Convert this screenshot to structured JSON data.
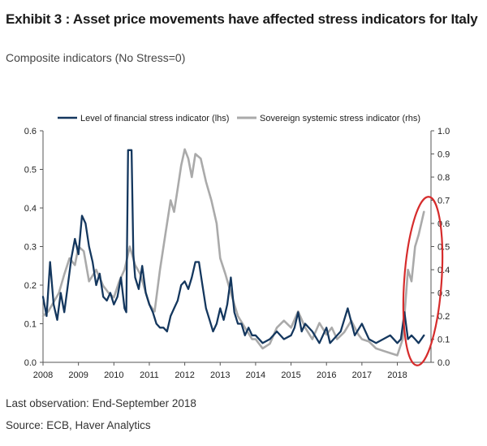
{
  "header": {
    "title": "Exhibit 3 : Asset price movements have affected stress indicators for Italy",
    "subtitle": "Composite indicators (No Stress=0)"
  },
  "footer": {
    "note": "Last observation: End-September 2018",
    "source": "Source: ECB, Haver Analytics"
  },
  "colors": {
    "financial": "#14375e",
    "sovereign": "#aaaaaa",
    "highlight": "#d62c2c",
    "axis": "#555555"
  },
  "chart_data": {
    "type": "line",
    "legend_position": "top",
    "grid": false,
    "x_ticks": [
      "2008",
      "2009",
      "2010",
      "2011",
      "2012",
      "2013",
      "2014",
      "2015",
      "2016",
      "2017",
      "2018"
    ],
    "y_left_ticks": [
      "0.0",
      "0.1",
      "0.2",
      "0.3",
      "0.4",
      "0.5",
      "0.6"
    ],
    "y_right_ticks": [
      "0.0",
      "0.1",
      "0.2",
      "0.3",
      "0.4",
      "0.5",
      "0.6",
      "0.7",
      "0.8",
      "0.9",
      "1.0"
    ],
    "ylim_left": [
      0,
      0.6
    ],
    "ylim_right": [
      0,
      1.0
    ],
    "xlim": [
      2008,
      2018.95
    ],
    "annotation": "red ellipse highlighting 2018 rise",
    "series": [
      {
        "name": "Level of financial stress indicator (lhs)",
        "axis": "left",
        "x": [
          2008.0,
          2008.1,
          2008.2,
          2008.3,
          2008.4,
          2008.5,
          2008.6,
          2008.7,
          2008.8,
          2008.9,
          2009.0,
          2009.1,
          2009.2,
          2009.3,
          2009.4,
          2009.5,
          2009.6,
          2009.7,
          2009.8,
          2009.9,
          2010.0,
          2010.1,
          2010.2,
          2010.3,
          2010.35,
          2010.4,
          2010.5,
          2010.55,
          2010.6,
          2010.7,
          2010.8,
          2010.9,
          2011.0,
          2011.1,
          2011.2,
          2011.3,
          2011.4,
          2011.5,
          2011.6,
          2011.7,
          2011.8,
          2011.9,
          2012.0,
          2012.1,
          2012.2,
          2012.3,
          2012.4,
          2012.5,
          2012.6,
          2012.7,
          2012.8,
          2012.9,
          2013.0,
          2013.1,
          2013.2,
          2013.3,
          2013.4,
          2013.5,
          2013.6,
          2013.7,
          2013.8,
          2013.9,
          2014.0,
          2014.2,
          2014.4,
          2014.6,
          2014.8,
          2015.0,
          2015.1,
          2015.2,
          2015.3,
          2015.4,
          2015.6,
          2015.8,
          2016.0,
          2016.1,
          2016.2,
          2016.4,
          2016.6,
          2016.8,
          2017.0,
          2017.2,
          2017.4,
          2017.6,
          2017.8,
          2018.0,
          2018.1,
          2018.2,
          2018.3,
          2018.4,
          2018.5,
          2018.6,
          2018.75
        ],
        "y": [
          0.17,
          0.12,
          0.26,
          0.15,
          0.11,
          0.18,
          0.13,
          0.2,
          0.27,
          0.32,
          0.28,
          0.38,
          0.36,
          0.3,
          0.26,
          0.2,
          0.23,
          0.17,
          0.16,
          0.18,
          0.15,
          0.17,
          0.22,
          0.14,
          0.13,
          0.55,
          0.55,
          0.28,
          0.22,
          0.19,
          0.25,
          0.18,
          0.15,
          0.13,
          0.1,
          0.09,
          0.09,
          0.08,
          0.12,
          0.14,
          0.16,
          0.2,
          0.21,
          0.19,
          0.22,
          0.26,
          0.26,
          0.2,
          0.14,
          0.11,
          0.08,
          0.1,
          0.14,
          0.11,
          0.15,
          0.22,
          0.13,
          0.1,
          0.1,
          0.07,
          0.09,
          0.07,
          0.07,
          0.05,
          0.06,
          0.08,
          0.06,
          0.07,
          0.09,
          0.13,
          0.08,
          0.1,
          0.08,
          0.05,
          0.09,
          0.05,
          0.06,
          0.08,
          0.14,
          0.07,
          0.1,
          0.06,
          0.05,
          0.06,
          0.07,
          0.05,
          0.06,
          0.13,
          0.06,
          0.07,
          0.06,
          0.05,
          0.07
        ]
      },
      {
        "name": "Sovereign systemic stress indicator (rhs)",
        "axis": "right",
        "x": [
          2008.0,
          2008.15,
          2008.3,
          2008.45,
          2008.6,
          2008.75,
          2008.9,
          2009.0,
          2009.15,
          2009.3,
          2009.5,
          2009.7,
          2009.85,
          2010.0,
          2010.15,
          2010.3,
          2010.45,
          2010.6,
          2010.75,
          2010.9,
          2011.0,
          2011.15,
          2011.3,
          2011.45,
          2011.6,
          2011.7,
          2011.8,
          2011.9,
          2012.0,
          2012.1,
          2012.2,
          2012.3,
          2012.45,
          2012.6,
          2012.75,
          2012.9,
          2013.0,
          2013.15,
          2013.3,
          2013.5,
          2013.7,
          2013.9,
          2014.0,
          2014.2,
          2014.4,
          2014.6,
          2014.8,
          2015.0,
          2015.2,
          2015.4,
          2015.6,
          2015.8,
          2016.0,
          2016.15,
          2016.3,
          2016.5,
          2016.7,
          2016.9,
          2017.0,
          2017.2,
          2017.4,
          2017.6,
          2017.8,
          2018.0,
          2018.15,
          2018.3,
          2018.4,
          2018.5,
          2018.6,
          2018.75
        ],
        "y": [
          0.2,
          0.22,
          0.26,
          0.3,
          0.38,
          0.45,
          0.42,
          0.5,
          0.48,
          0.35,
          0.4,
          0.33,
          0.3,
          0.28,
          0.35,
          0.4,
          0.5,
          0.42,
          0.38,
          0.3,
          0.25,
          0.22,
          0.4,
          0.55,
          0.7,
          0.65,
          0.75,
          0.85,
          0.92,
          0.88,
          0.8,
          0.9,
          0.88,
          0.78,
          0.7,
          0.6,
          0.45,
          0.38,
          0.3,
          0.2,
          0.15,
          0.1,
          0.1,
          0.06,
          0.08,
          0.15,
          0.18,
          0.15,
          0.22,
          0.15,
          0.1,
          0.17,
          0.12,
          0.15,
          0.1,
          0.13,
          0.18,
          0.12,
          0.1,
          0.09,
          0.06,
          0.05,
          0.04,
          0.03,
          0.1,
          0.4,
          0.35,
          0.5,
          0.55,
          0.65
        ]
      }
    ]
  }
}
